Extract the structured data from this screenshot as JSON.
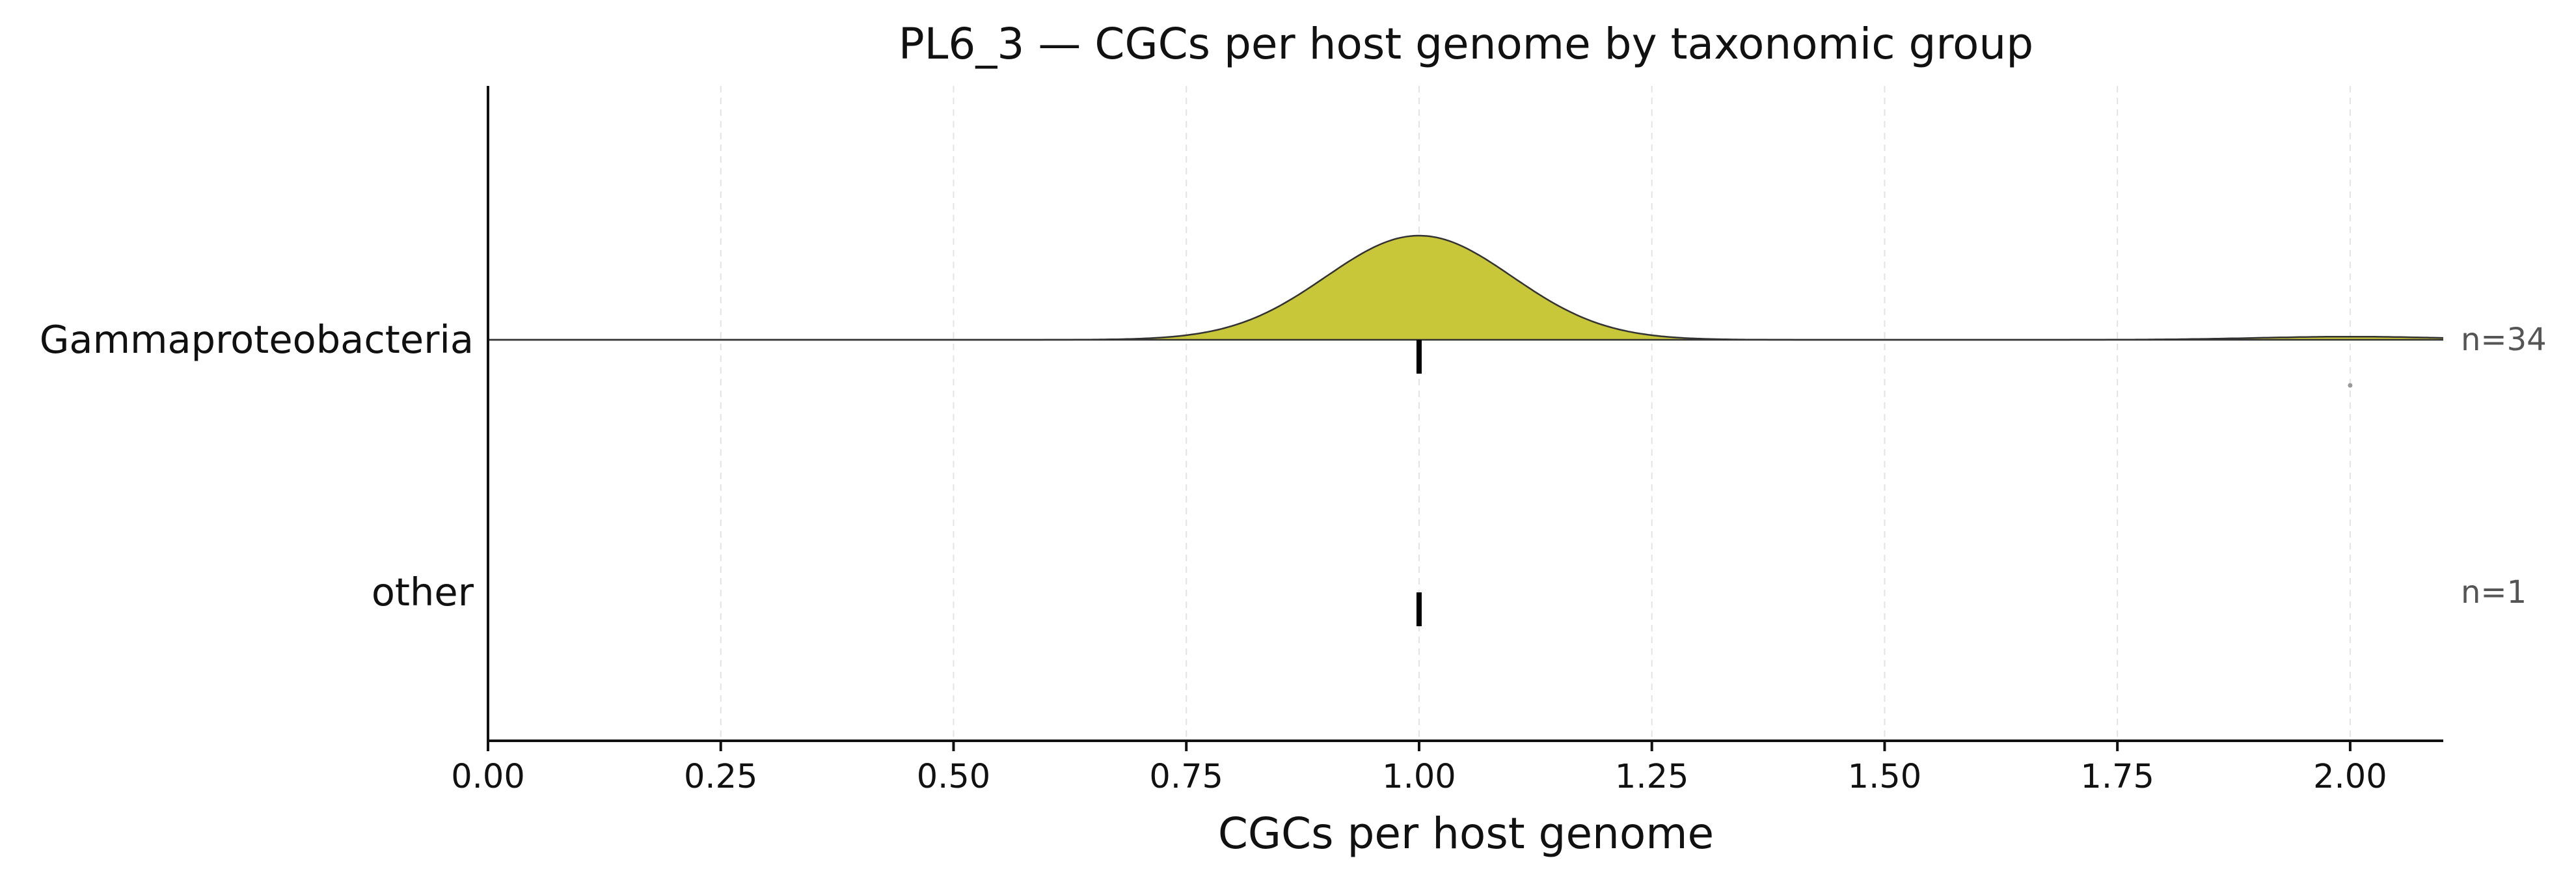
{
  "chart_data": {
    "type": "ridgeline",
    "title": "PL6_3 — CGCs per host genome by taxonomic group",
    "xlabel": "CGCs per host genome",
    "ylabel": "",
    "xlim": [
      0,
      2.1
    ],
    "xticks": [
      0.0,
      0.25,
      0.5,
      0.75,
      1.0,
      1.25,
      1.5,
      1.75,
      2.0
    ],
    "xtick_labels": [
      "0.00",
      "0.25",
      "0.50",
      "0.75",
      "1.00",
      "1.25",
      "1.50",
      "1.75",
      "2.00"
    ],
    "grid": "vertical dashed",
    "fill_color": "#c5c32e",
    "groups": [
      {
        "label": "Gammaproteobacteria",
        "n_label": "n=34",
        "median": 1.0,
        "values": [
          1,
          1,
          1,
          1,
          1,
          1,
          1,
          1,
          1,
          1,
          1,
          1,
          1,
          1,
          1,
          1,
          1,
          1,
          1,
          1,
          1,
          1,
          1,
          1,
          1,
          1,
          1,
          1,
          1,
          1,
          1,
          1,
          1,
          2
        ],
        "outliers": [
          2.0
        ]
      },
      {
        "label": "other",
        "n_label": "n=1",
        "median": 1.0,
        "values": [
          1
        ],
        "outliers": []
      }
    ]
  }
}
